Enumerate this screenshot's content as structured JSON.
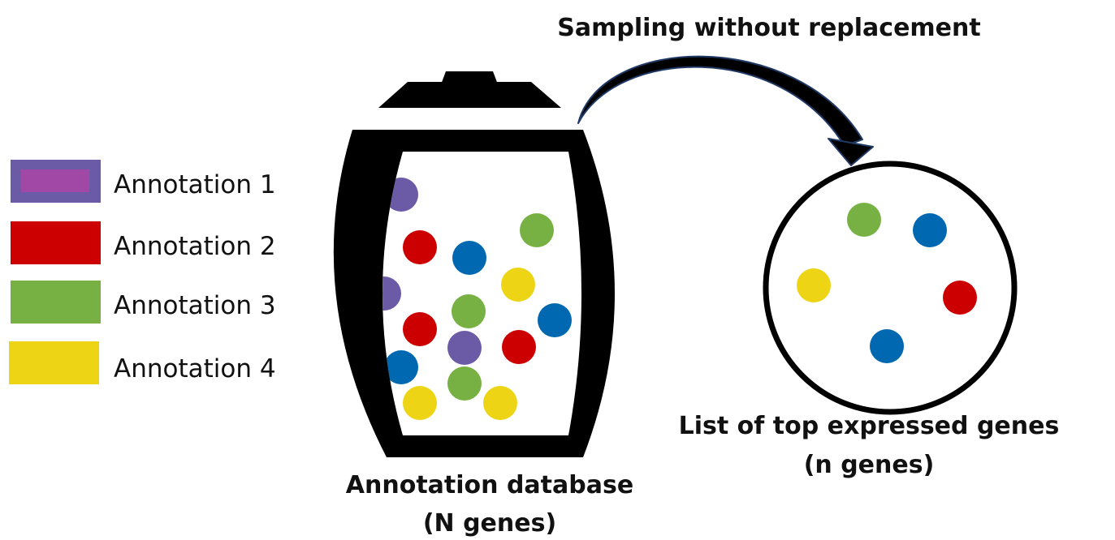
{
  "title": "Sampling without replacement",
  "legend": [
    {
      "label": "Annotation 1",
      "color": "#6B5BA6",
      "inner_color": "#A148A6"
    },
    {
      "label": "Annotation 2",
      "color": "#CC0000"
    },
    {
      "label": "Annotation 3",
      "color": "#77B144"
    },
    {
      "label": "Annotation 4",
      "color": "#EDD515"
    }
  ],
  "database": {
    "caption_line1": "Annotation database",
    "caption_line2": "(N genes)"
  },
  "sample": {
    "caption_line1": "List of top expressed genes",
    "caption_line2": "(n genes)"
  },
  "dot_colors": {
    "purple": "#6B5BA6",
    "red": "#CC0000",
    "green": "#77B144",
    "yellow": "#EDD515",
    "blue": "#0068B1"
  },
  "jar_balls": [
    "purple",
    "green",
    "red",
    "blue",
    "yellow",
    "purple",
    "green",
    "blue",
    "red",
    "purple",
    "red",
    "blue",
    "green",
    "yellow",
    "yellow"
  ],
  "sample_balls": [
    "green",
    "blue",
    "yellow",
    "red",
    "blue"
  ]
}
